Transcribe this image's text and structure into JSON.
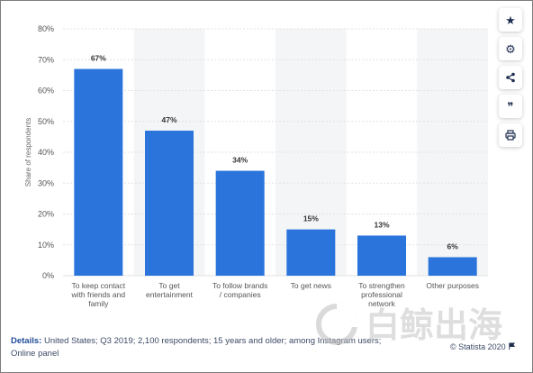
{
  "chart_data": {
    "type": "bar",
    "categories": [
      [
        "To keep contact",
        "with friends and",
        "family"
      ],
      [
        "To get",
        "entertainment"
      ],
      [
        "To follow brands",
        "/ companies"
      ],
      [
        "To get news"
      ],
      [
        "To strengthen",
        "professional",
        "network"
      ],
      [
        "Other purposes"
      ]
    ],
    "values": [
      67,
      47,
      34,
      15,
      13,
      6
    ],
    "value_labels": [
      "67%",
      "47%",
      "34%",
      "15%",
      "13%",
      "6%"
    ],
    "ylabel": "Share of respondents",
    "ylim": [
      0,
      80
    ],
    "yticks": [
      0,
      10,
      20,
      30,
      40,
      50,
      60,
      70,
      80
    ],
    "ytick_labels": [
      "0%",
      "10%",
      "20%",
      "30%",
      "40%",
      "50%",
      "60%",
      "70%",
      "80%"
    ],
    "grid": true,
    "bar_color": "#2a74dc",
    "alt_band_color": "#f4f5f7"
  },
  "toolbar": {
    "items": [
      {
        "icon": "star-icon",
        "glyph": "★"
      },
      {
        "icon": "gear-icon",
        "glyph": "⚙"
      },
      {
        "icon": "share-icon",
        "glyph": "⟨"
      },
      {
        "icon": "quote-icon",
        "glyph": "❞"
      },
      {
        "icon": "print-icon",
        "glyph": "⎙"
      }
    ]
  },
  "footer": {
    "details_label": "Details:",
    "details_text": " United States; Q3 2019; 2,100 respondents; 15 years and older; among Instagram users; Online panel",
    "credit": "© Statista 2020"
  },
  "watermark": {
    "text": "白鲸出海"
  }
}
